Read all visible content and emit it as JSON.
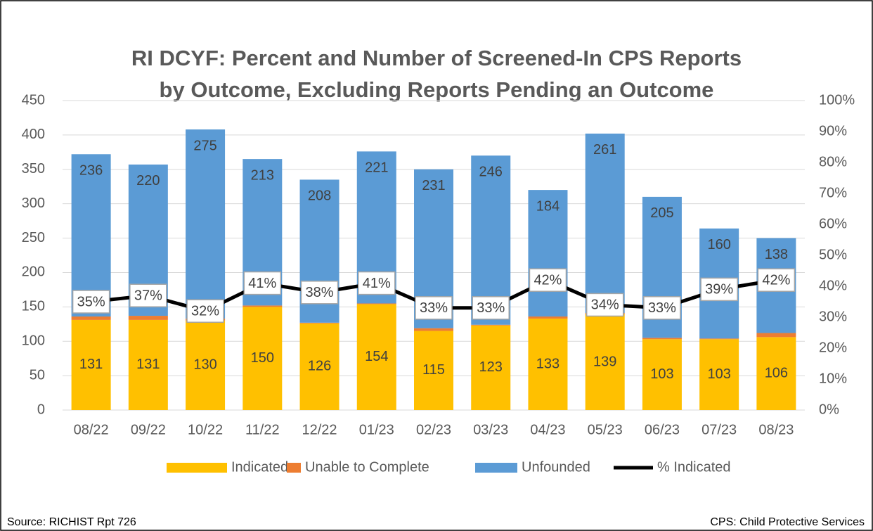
{
  "chart_data": {
    "type": "bar",
    "title": [
      "RI DCYF: Percent and Number of Screened-In CPS Reports",
      "by Outcome, Excluding Reports Pending an Outcome"
    ],
    "categories": [
      "08/22",
      "09/22",
      "10/22",
      "11/22",
      "12/22",
      "01/23",
      "02/23",
      "03/23",
      "04/23",
      "05/23",
      "06/23",
      "07/23",
      "08/23"
    ],
    "stacked": true,
    "series": [
      {
        "name": "Indicated",
        "color": "#FFC000",
        "values": [
          131,
          131,
          130,
          150,
          126,
          154,
          115,
          123,
          133,
          139,
          103,
          103,
          106
        ],
        "labels": true
      },
      {
        "name": "Unable to Complete",
        "color": "#ED7D31",
        "values": [
          5,
          6,
          3,
          2,
          1,
          1,
          4,
          1,
          3,
          2,
          2,
          1,
          6
        ],
        "labels": false
      },
      {
        "name": "Unfounded",
        "color": "#5B9BD5",
        "values": [
          236,
          220,
          275,
          213,
          208,
          221,
          231,
          246,
          184,
          261,
          205,
          160,
          138
        ],
        "labels": true
      },
      {
        "name": "% Indicated",
        "color": "#000000",
        "type": "line",
        "axis": "y2",
        "values": [
          35,
          37,
          32,
          41,
          38,
          41,
          33,
          33,
          42,
          34,
          33,
          39,
          42
        ],
        "value_labels": [
          "35%",
          "37%",
          "32%",
          "41%",
          "38%",
          "41%",
          "33%",
          "33%",
          "42%",
          "34%",
          "33%",
          "39%",
          "42%"
        ]
      }
    ],
    "ylim": [
      0,
      450
    ],
    "yticks": [
      0,
      50,
      100,
      150,
      200,
      250,
      300,
      350,
      400,
      450
    ],
    "y2lim": [
      0,
      100
    ],
    "y2ticks": [
      {
        "value": 0,
        "label": "0%"
      },
      {
        "value": 10,
        "label": "10%"
      },
      {
        "value": 20,
        "label": "20%"
      },
      {
        "value": 30,
        "label": "30%"
      },
      {
        "value": 40,
        "label": "40%"
      },
      {
        "value": 50,
        "label": "50%"
      },
      {
        "value": 60,
        "label": "60%"
      },
      {
        "value": 70,
        "label": "70%"
      },
      {
        "value": 80,
        "label": "80%"
      },
      {
        "value": 90,
        "label": "90%"
      },
      {
        "value": 100,
        "label": "100%"
      }
    ],
    "grid": true,
    "legend": "bottom",
    "source": "Source:  RICHIST Rpt 726",
    "note": "CPS: Child Protective  Services"
  }
}
